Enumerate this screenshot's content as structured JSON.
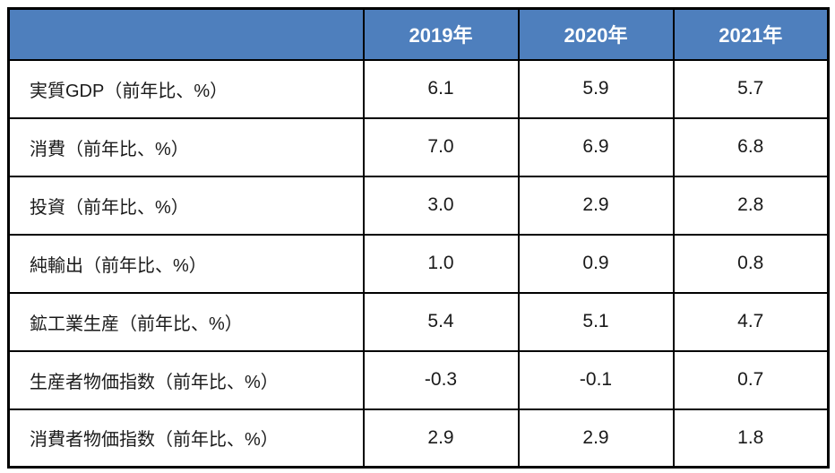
{
  "chart_data": {
    "type": "table",
    "corner_label": "",
    "columns": [
      "2019年",
      "2020年",
      "2021年"
    ],
    "rows": [
      {
        "label": "実質GDP（前年比、%）",
        "values": [
          "6.1",
          "5.9",
          "5.7"
        ]
      },
      {
        "label": "消費（前年比、%）",
        "values": [
          "7.0",
          "6.9",
          "6.8"
        ]
      },
      {
        "label": "投資（前年比、%）",
        "values": [
          "3.0",
          "2.9",
          "2.8"
        ]
      },
      {
        "label": "純輸出（前年比、%）",
        "values": [
          "1.0",
          "0.9",
          "0.8"
        ]
      },
      {
        "label": "鉱工業生産（前年比、%）",
        "values": [
          "5.4",
          "5.1",
          "4.7"
        ]
      },
      {
        "label": "生産者物価指数（前年比、%）",
        "values": [
          "-0.3",
          "-0.1",
          "0.7"
        ]
      },
      {
        "label": "消費者物価指数（前年比、%）",
        "values": [
          "2.9",
          "2.9",
          "1.8"
        ]
      }
    ]
  },
  "colors": {
    "header_bg": "#4e7fbd",
    "header_text": "#ffffff",
    "grid_border": "#000000",
    "body_text": "#1a1a1a",
    "page_bg": "#ffffff"
  }
}
